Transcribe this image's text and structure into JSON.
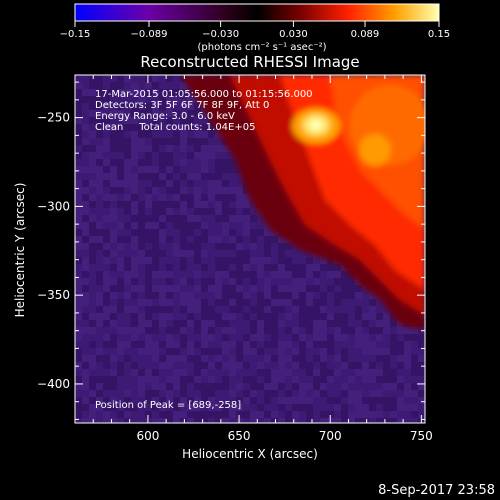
{
  "chart_data": {
    "type": "heatmap",
    "title": "Reconstructed RHESSI Image",
    "xlabel": "Heliocentric X (arcsec)",
    "ylabel": "Heliocentric Y (arcsec)",
    "xlim": [
      560,
      752
    ],
    "ylim": [
      -422,
      -226
    ],
    "x_ticks": [
      600,
      650,
      700,
      750
    ],
    "y_ticks": [
      -250,
      -300,
      -350,
      -400
    ],
    "x_tick_labels": [
      "600",
      "650",
      "700",
      "750"
    ],
    "y_tick_labels": [
      "−250",
      "−300",
      "−350",
      "−400"
    ],
    "colorbar": {
      "min": -0.15,
      "max": 0.15,
      "tick_labels": [
        "−0.15",
        "−0.089",
        "−0.030",
        "0.030",
        "0.089",
        "0.15"
      ],
      "units": "(photons cm⁻² s⁻¹ asec⁻²)",
      "colors": [
        "#0000ff",
        "#6a00a8",
        "#2a0018",
        "#000000",
        "#7a0000",
        "#ff2000",
        "#ffa000",
        "#ffffb0"
      ]
    },
    "annotations": [
      "17-Mar-2015 01:05:56.000 to 01:15:56.000",
      "Detectors: 3F 5F 6F 7F 8F 9F, Att 0",
      "Energy Range: 3.0 - 6.0 keV",
      "Clean     Total counts: 1.04E+05"
    ],
    "peak_text": "Position of Peak = [689,-258]",
    "peak": [
      689,
      -258
    ],
    "colors": {
      "background": "#000000",
      "quiet": "#3a1670",
      "bright": "#ffff80"
    }
  },
  "footer": {
    "timestamp": "8-Sep-2017 23:58"
  }
}
